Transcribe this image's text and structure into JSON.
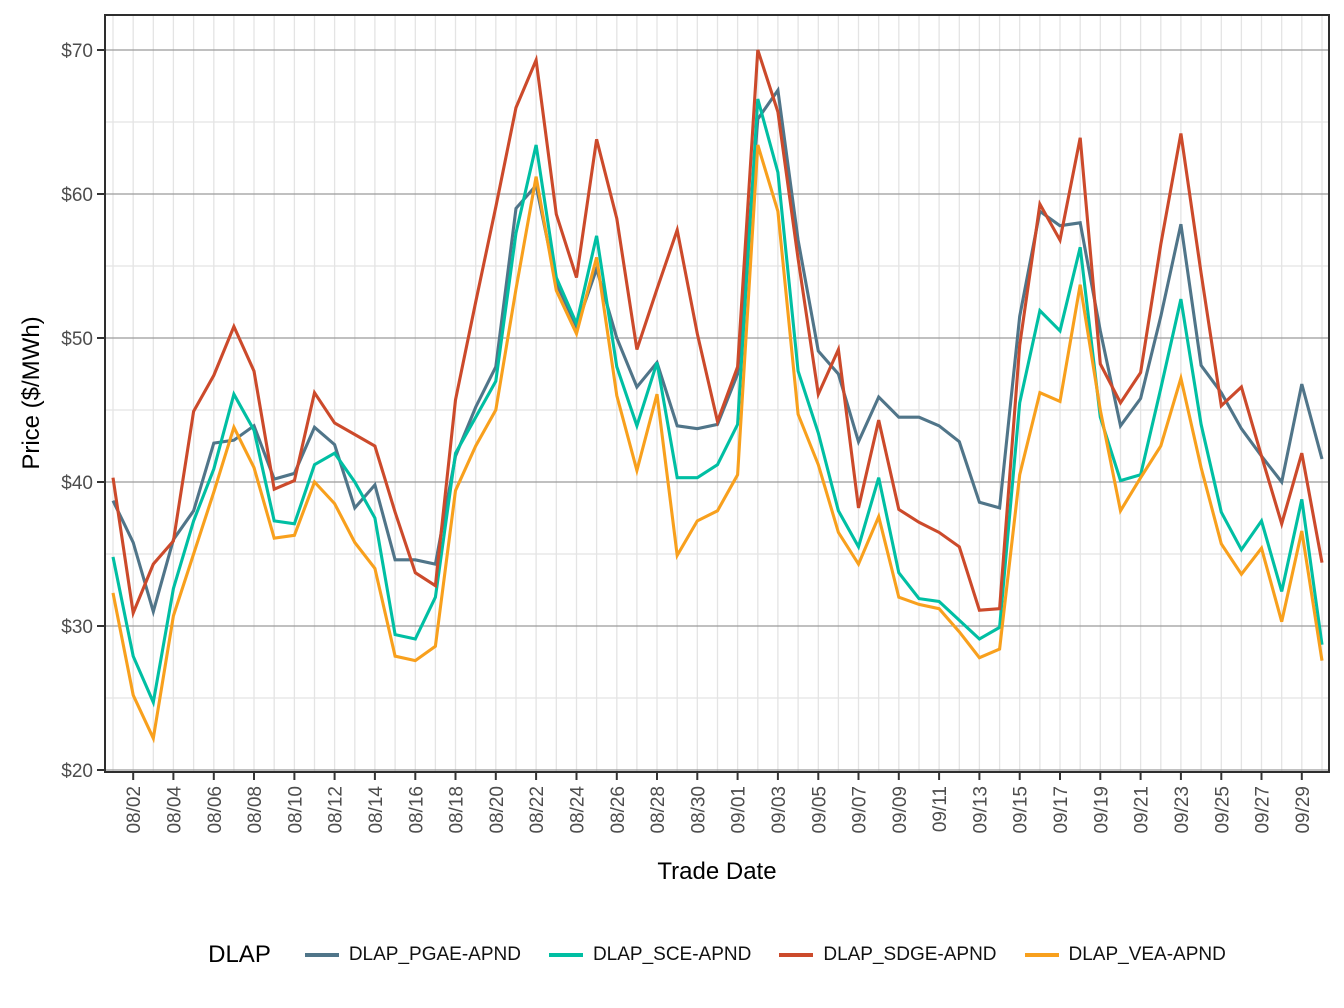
{
  "figure": {
    "y_axis_title": "Price ($/MWh)",
    "x_axis_title": "Trade Date"
  },
  "legend": {
    "title": "DLAP",
    "items": [
      {
        "label": "DLAP_PGAE-APND",
        "color": "#507589"
      },
      {
        "label": "DLAP_SCE-APND",
        "color": "#00BFA3"
      },
      {
        "label": "DLAP_SDGE-APND",
        "color": "#CC4A2B"
      },
      {
        "label": "DLAP_VEA-APND",
        "color": "#F8A01D"
      }
    ]
  },
  "chart_data": {
    "type": "line",
    "title": "",
    "xlabel": "Trade Date",
    "ylabel": "Price ($/MWh)",
    "ylim": [
      20,
      70
    ],
    "grid": "vertical daily light; horizontal majors dark gray, minors light",
    "legend_position": "bottom",
    "x": [
      "08/01",
      "08/02",
      "08/03",
      "08/04",
      "08/05",
      "08/06",
      "08/07",
      "08/08",
      "08/09",
      "08/10",
      "08/11",
      "08/12",
      "08/13",
      "08/14",
      "08/15",
      "08/16",
      "08/17",
      "08/18",
      "08/19",
      "08/20",
      "08/21",
      "08/22",
      "08/23",
      "08/24",
      "08/25",
      "08/26",
      "08/27",
      "08/28",
      "08/29",
      "08/30",
      "08/31",
      "09/01",
      "09/02",
      "09/03",
      "09/04",
      "09/05",
      "09/06",
      "09/07",
      "09/08",
      "09/09",
      "09/10",
      "09/11",
      "09/12",
      "09/13",
      "09/14",
      "09/15",
      "09/16",
      "09/17",
      "09/18",
      "09/19",
      "09/20",
      "09/21",
      "09/22",
      "09/23",
      "09/24",
      "09/25",
      "09/26",
      "09/27",
      "09/28",
      "09/29",
      "09/30"
    ],
    "x_tick_labels": [
      "08/02",
      "08/04",
      "08/06",
      "08/08",
      "08/10",
      "08/12",
      "08/14",
      "08/16",
      "08/18",
      "08/20",
      "08/22",
      "08/24",
      "08/26",
      "08/28",
      "08/30",
      "09/01",
      "09/03",
      "09/05",
      "09/07",
      "09/09",
      "09/11",
      "09/13",
      "09/15",
      "09/17",
      "09/19",
      "09/21",
      "09/23",
      "09/25",
      "09/27",
      "09/29"
    ],
    "y_tick_values": [
      20,
      30,
      40,
      50,
      60,
      70
    ],
    "y_tick_labels": [
      "$20",
      "$30",
      "$40",
      "$50",
      "$60",
      "$70"
    ],
    "y_minor_values": [
      25,
      35,
      45,
      55,
      65
    ],
    "series": [
      {
        "name": "DLAP_PGAE-APND",
        "color": "#507589",
        "values": [
          38.7,
          35.8,
          31.0,
          36.0,
          38.0,
          42.7,
          42.9,
          43.9,
          40.2,
          40.6,
          43.8,
          42.6,
          38.2,
          39.8,
          34.6,
          34.6,
          34.3,
          41.8,
          45.2,
          48.0,
          59.0,
          60.6,
          53.8,
          50.8,
          54.8,
          50.0,
          46.6,
          48.3,
          43.9,
          43.7,
          44.0,
          47.5,
          65.2,
          67.2,
          56.8,
          49.1,
          47.5,
          42.8,
          45.9,
          44.5,
          44.5,
          43.9,
          42.8,
          38.6,
          38.2,
          51.5,
          58.8,
          57.8,
          58.0,
          50.5,
          43.9,
          45.8,
          51.5,
          57.9,
          48.1,
          46.2,
          43.7,
          41.8,
          40.0,
          46.8,
          41.6
        ]
      },
      {
        "name": "DLAP_SCE-APND",
        "color": "#00BFA3",
        "values": [
          34.8,
          27.9,
          24.7,
          32.6,
          37.3,
          40.9,
          46.1,
          43.6,
          37.3,
          37.1,
          41.2,
          42.0,
          40.0,
          37.5,
          29.4,
          29.1,
          32.0,
          42.0,
          44.5,
          47.0,
          57.3,
          63.4,
          54.2,
          51.0,
          57.1,
          48.0,
          43.9,
          48.3,
          40.3,
          40.3,
          41.2,
          44.0,
          66.6,
          61.5,
          47.7,
          43.4,
          38.0,
          35.5,
          40.3,
          33.7,
          31.9,
          31.7,
          30.4,
          29.1,
          29.9,
          45.5,
          51.9,
          50.5,
          56.3,
          44.5,
          40.1,
          40.5,
          46.5,
          52.7,
          44.0,
          37.9,
          35.3,
          37.3,
          32.4,
          38.8,
          28.7
        ]
      },
      {
        "name": "DLAP_SDGE-APND",
        "color": "#CC4A2B",
        "values": [
          40.3,
          30.9,
          34.3,
          35.9,
          44.9,
          47.4,
          50.8,
          47.7,
          39.5,
          40.1,
          46.2,
          44.1,
          43.3,
          42.5,
          37.9,
          33.7,
          32.8,
          45.7,
          52.5,
          59.1,
          66.0,
          69.3,
          58.6,
          54.2,
          63.8,
          58.3,
          49.2,
          53.4,
          57.5,
          50.3,
          44.2,
          48.0,
          70.0,
          65.7,
          55.5,
          46.1,
          49.2,
          38.2,
          44.3,
          38.1,
          37.2,
          36.5,
          35.5,
          31.1,
          31.2,
          49.5,
          59.3,
          56.8,
          63.9,
          48.2,
          45.5,
          47.6,
          56.5,
          64.2,
          54.5,
          45.3,
          46.6,
          41.8,
          37.1,
          42.0,
          34.4
        ]
      },
      {
        "name": "DLAP_VEA-APND",
        "color": "#F8A01D",
        "values": [
          32.3,
          25.2,
          22.2,
          30.7,
          35.0,
          39.3,
          43.8,
          41.0,
          36.1,
          36.3,
          40.0,
          38.5,
          35.8,
          34.0,
          27.9,
          27.6,
          28.6,
          39.4,
          42.5,
          45.0,
          53.4,
          61.2,
          53.3,
          50.3,
          55.6,
          46.0,
          40.8,
          46.1,
          34.9,
          37.3,
          38.0,
          40.5,
          63.4,
          58.8,
          44.7,
          41.2,
          36.5,
          34.3,
          37.6,
          32.0,
          31.5,
          31.2,
          29.6,
          27.8,
          28.4,
          40.5,
          46.2,
          45.6,
          53.7,
          45.0,
          38.0,
          40.3,
          42.5,
          47.2,
          41.0,
          35.7,
          33.6,
          35.4,
          30.3,
          36.6,
          27.6
        ]
      }
    ],
    "style": {
      "panel_border_color": "#2E2E2E",
      "grid_major_y_color": "#9A9A9A",
      "grid_minor_color": "#E4E4E4",
      "tick_color": "#333333",
      "tick_label_color": "#4D4D4D"
    }
  }
}
